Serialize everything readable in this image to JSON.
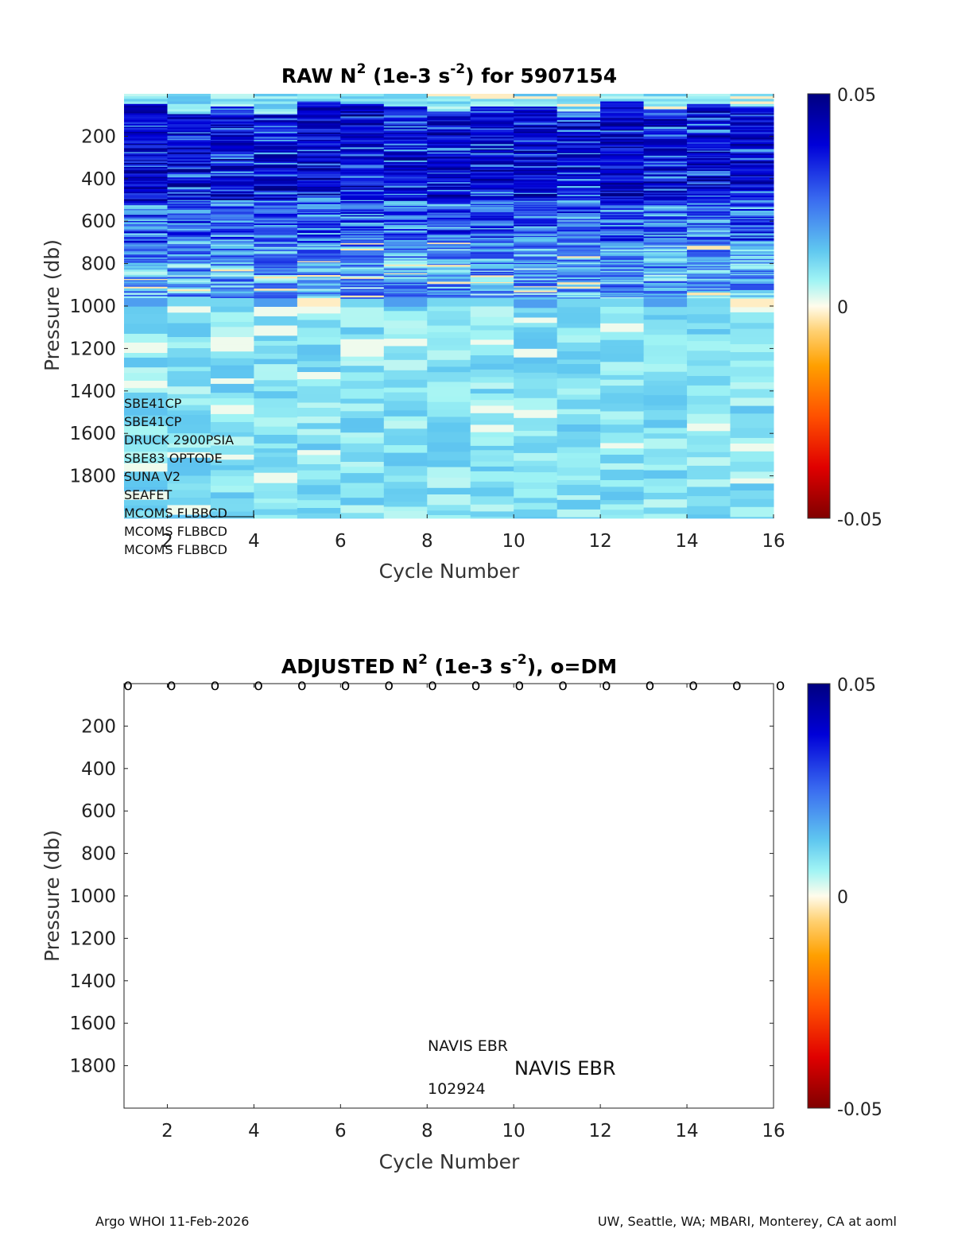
{
  "chart_data": [
    {
      "type": "heatmap",
      "title": {
        "prefix": "RAW N",
        "sup1": "2",
        "mid": " (1e-3 s",
        "sup2": "-2",
        "suffix": ") for 5907154"
      },
      "xlabel": "Cycle Number",
      "ylabel": "Pressure (db)",
      "xlim": [
        1,
        16
      ],
      "ylim": [
        2000,
        0
      ],
      "xticks": [
        2,
        4,
        6,
        8,
        10,
        12,
        14,
        16
      ],
      "yticks": [
        200,
        400,
        600,
        800,
        1000,
        1200,
        1400,
        1600,
        1800
      ],
      "colorbar": {
        "min": -0.05,
        "max": 0.05,
        "tick_labels": [
          "0.05",
          "0",
          "-0.05"
        ],
        "colormap": "blue-cyan-white-yellow-red"
      },
      "cycles": [
        1,
        2,
        3,
        4,
        5,
        6,
        7,
        8,
        9,
        10,
        11,
        12,
        13,
        14,
        15
      ],
      "profile_summary_by_depth": [
        {
          "pressure_range": [
            0,
            90
          ],
          "typical_value": 0.01
        },
        {
          "pressure_range": [
            90,
            500
          ],
          "typical_value": 0.05
        },
        {
          "pressure_range": [
            500,
            950
          ],
          "typical_value": 0.02
        },
        {
          "pressure_range": [
            950,
            2000
          ],
          "typical_value": 0.008
        }
      ],
      "annotations": [
        "SBE41CP",
        "SBE41CP",
        "DRUCK 2900PSIA",
        "SBE83 OPTODE",
        "SUNA V2",
        "SEAFET",
        "MCOMS FLBBCD",
        "MCOMS FLBBCD",
        "MCOMS FLBBCD"
      ]
    },
    {
      "type": "heatmap",
      "title": {
        "prefix": "ADJUSTED N",
        "sup1": "2",
        "mid": " (1e-3 s",
        "sup2": "-2",
        "suffix": "), o=DM"
      },
      "xlabel": "Cycle Number",
      "ylabel": "Pressure (db)",
      "xlim": [
        1,
        16
      ],
      "ylim": [
        2000,
        0
      ],
      "xticks": [
        2,
        4,
        6,
        8,
        10,
        12,
        14,
        16
      ],
      "yticks": [
        200,
        400,
        600,
        800,
        1000,
        1200,
        1400,
        1600,
        1800
      ],
      "colorbar": {
        "min": -0.05,
        "max": 0.05,
        "tick_labels": [
          "0.05",
          "0",
          "-0.05"
        ],
        "colormap": "blue-cyan-white-yellow-red"
      },
      "dm_markers": {
        "symbol": "o",
        "cycles": [
          1,
          2,
          3,
          4,
          5,
          6,
          7,
          8,
          9,
          10,
          11,
          12,
          13,
          14,
          15,
          16
        ]
      },
      "annotations": [
        "NAVIS EBR",
        "NAVIS EBR",
        "102924"
      ]
    }
  ],
  "footer": {
    "left": "Argo WHOI 11-Feb-2026",
    "right": "UW, Seattle, WA; MBARI, Monterey, CA at aoml"
  }
}
